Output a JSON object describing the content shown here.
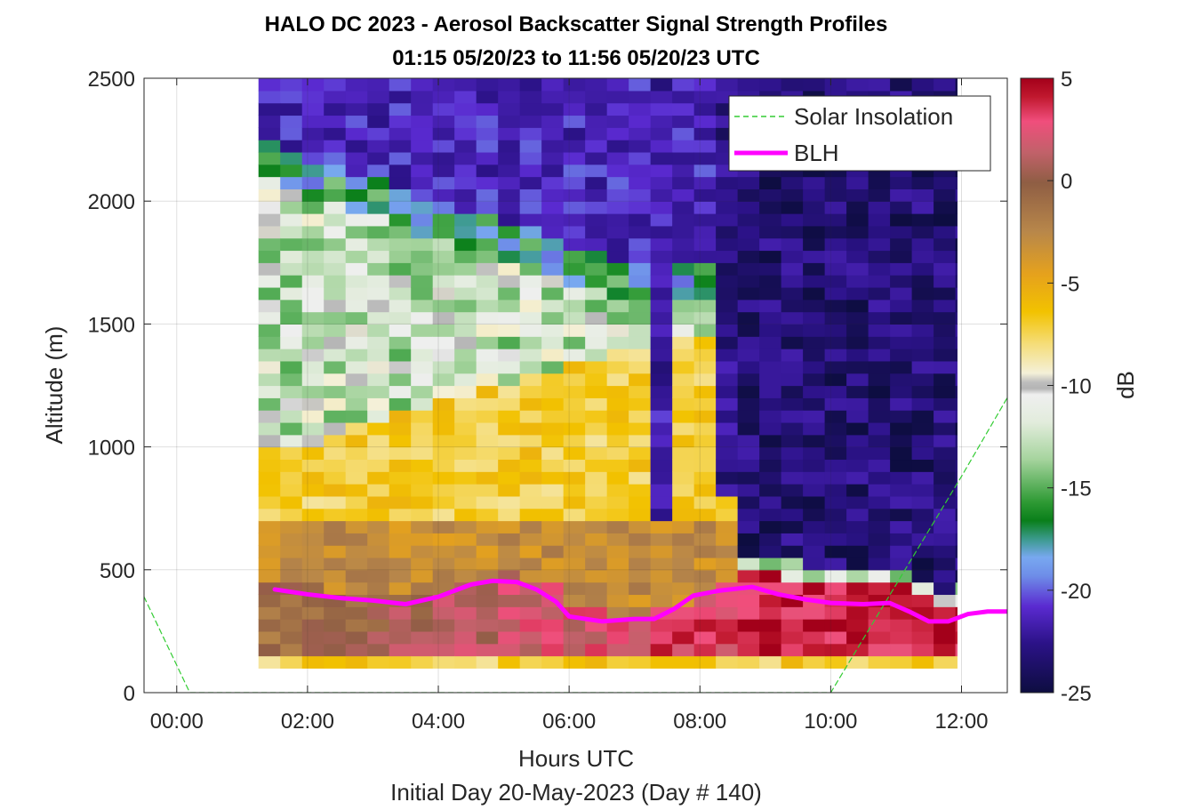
{
  "chart_data": {
    "type": "heatmap",
    "title_lines": [
      "HALO DC 2023 - Aerosol Backscatter Signal Strength Profiles",
      "01:15 05/20/23 to 11:56 05/20/23  UTC"
    ],
    "xlabel": "Hours UTC",
    "xsublabel": "Initial Day 20-May-2023 (Day # 140)",
    "ylabel": "Altitude (m)",
    "colorbar_label": "dB",
    "xlim": [
      -0.5,
      12.7
    ],
    "ylim": [
      0,
      2500
    ],
    "clim": [
      -25,
      5
    ],
    "x_ticks": [
      0,
      2,
      4,
      6,
      8,
      10,
      12
    ],
    "x_tick_labels": [
      "00:00",
      "02:00",
      "04:00",
      "06:00",
      "08:00",
      "10:00",
      "12:00"
    ],
    "y_ticks": [
      0,
      500,
      1000,
      1500,
      2000,
      2500
    ],
    "y_tick_labels": [
      "0",
      "500",
      "1000",
      "1500",
      "2000",
      "2500"
    ],
    "colorbar_ticks": [
      5,
      0,
      -5,
      -10,
      -15,
      -20,
      -25
    ],
    "colorbar_tick_labels": [
      "5",
      "0",
      "-5",
      "-10",
      "-15",
      "-20",
      "-25"
    ],
    "grid": true,
    "legend_position": "top-right",
    "heatmap": {
      "x_start": 1.25,
      "x_end": 11.93,
      "y_start": 100,
      "y_end": 2500,
      "profile_interval_hours": 0.333,
      "altitude_bin_m": 50
    },
    "series": [
      {
        "name": "Solar Insolation",
        "style": "dashed",
        "color": "#33cc33",
        "x": [
          -0.5,
          0.2,
          1.0,
          2.0,
          4.0,
          6.0,
          8.0,
          10.0,
          10.5,
          11.0,
          11.5,
          12.0,
          12.7
        ],
        "y": [
          390,
          0,
          0,
          0,
          0,
          0,
          0,
          0,
          220,
          440,
          660,
          880,
          1200
        ]
      },
      {
        "name": "BLH",
        "style": "solid",
        "color": "#ff00ff",
        "x": [
          1.5,
          2.0,
          2.5,
          3.0,
          3.5,
          4.0,
          4.5,
          4.83,
          5.2,
          5.5,
          5.8,
          6.0,
          6.5,
          7.0,
          7.3,
          7.6,
          7.9,
          8.3,
          8.8,
          9.2,
          9.6,
          10.0,
          10.5,
          10.9,
          11.2,
          11.5,
          11.8,
          12.1,
          12.4,
          12.7
        ],
        "y": [
          420,
          400,
          385,
          375,
          360,
          390,
          440,
          455,
          450,
          420,
          370,
          310,
          290,
          300,
          300,
          340,
          395,
          415,
          430,
          400,
          380,
          365,
          360,
          365,
          330,
          290,
          290,
          320,
          330,
          330
        ]
      }
    ]
  }
}
